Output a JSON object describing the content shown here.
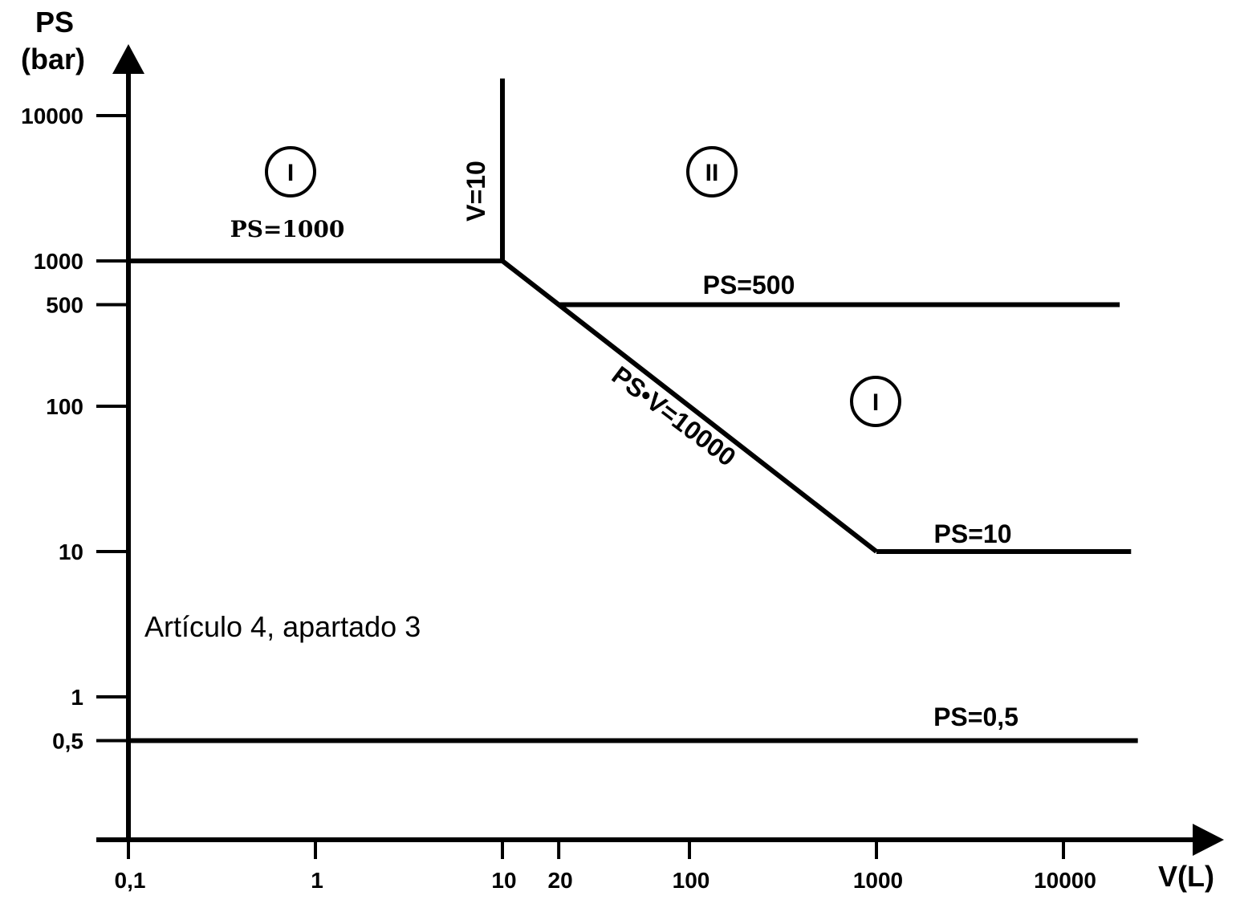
{
  "chart_data": {
    "type": "line",
    "xscale": "log",
    "yscale": "log",
    "x_axis": {
      "label": "V(L)",
      "ticks": [
        {
          "value": 0.1,
          "label": "0,1"
        },
        {
          "value": 1,
          "label": "1"
        },
        {
          "value": 10,
          "label": "10"
        },
        {
          "value": 20,
          "label": "20"
        },
        {
          "value": 100,
          "label": "100"
        },
        {
          "value": 1000,
          "label": "1000"
        },
        {
          "value": 10000,
          "label": "10000"
        }
      ]
    },
    "y_axis": {
      "label_line1": "PS",
      "label_line2": "(bar)",
      "ticks": [
        {
          "value": 10000,
          "label": "10000"
        },
        {
          "value": 1000,
          "label": "1000"
        },
        {
          "value": 500,
          "label": "500"
        },
        {
          "value": 100,
          "label": "100"
        },
        {
          "value": 10,
          "label": "10"
        },
        {
          "value": 1,
          "label": "1"
        },
        {
          "value": 0.5,
          "label": "0,5"
        }
      ]
    },
    "lines": [
      {
        "id": "ps-1000",
        "points": [
          [
            0.1,
            1000
          ],
          [
            10,
            1000
          ]
        ]
      },
      {
        "id": "v-10",
        "points": [
          [
            10,
            1000
          ],
          [
            10,
            18000
          ]
        ]
      },
      {
        "id": "ps-v-10000",
        "points": [
          [
            10,
            1000
          ],
          [
            1000,
            10
          ]
        ]
      },
      {
        "id": "ps-500",
        "points": [
          [
            20,
            500
          ],
          [
            20000,
            500
          ]
        ]
      },
      {
        "id": "ps-10",
        "points": [
          [
            1000,
            10
          ],
          [
            23000,
            10
          ]
        ]
      },
      {
        "id": "ps-0-5",
        "points": [
          [
            0.1,
            0.5
          ],
          [
            25000,
            0.5
          ]
        ]
      }
    ],
    "annotations": [
      {
        "id": "label-ps-1000",
        "text": "PS=1000"
      },
      {
        "id": "label-v-10",
        "text": "V=10"
      },
      {
        "id": "label-ps-500",
        "text": "PS=500"
      },
      {
        "id": "label-ps-v",
        "text": "PS•V=10000"
      },
      {
        "id": "label-ps-10",
        "text": "PS=10"
      },
      {
        "id": "label-ps-0-5",
        "text": "PS=0,5"
      },
      {
        "id": "note-articulo",
        "text": "Artículo 4, apartado 3"
      }
    ],
    "regions": [
      {
        "id": "region-i-left",
        "label": "I"
      },
      {
        "id": "region-ii",
        "label": "II"
      },
      {
        "id": "region-i-right",
        "label": "I"
      }
    ],
    "grid": false,
    "legend": "none"
  }
}
